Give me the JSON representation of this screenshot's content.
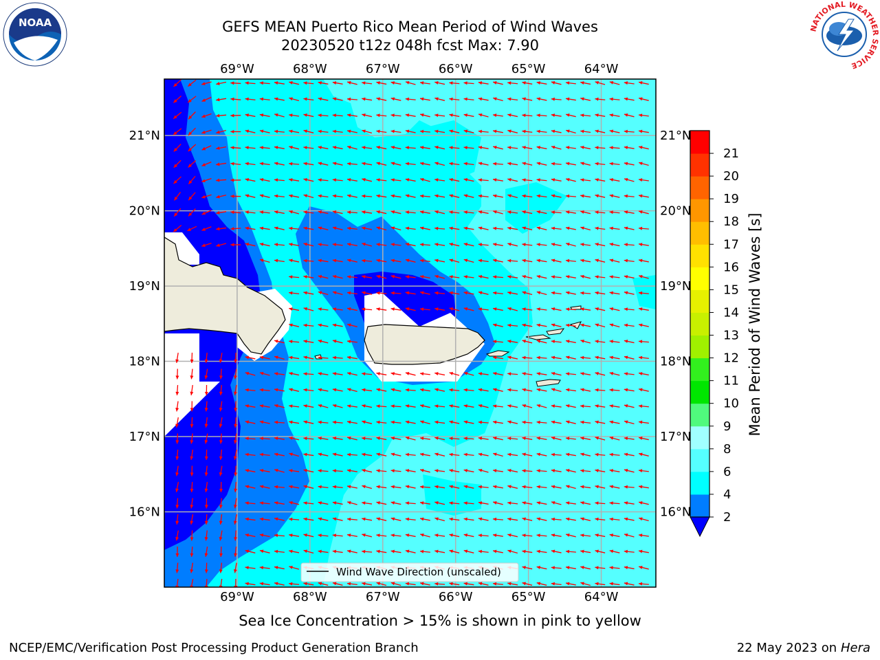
{
  "title": {
    "line1": "GEFS MEAN Puerto Rico Mean Period of Wind Waves",
    "line2": "20230520 t12z 048h fcst   Max: 7.90"
  },
  "map": {
    "lon_ticks": [
      "69°W",
      "68°W",
      "67°W",
      "66°W",
      "65°W",
      "64°W"
    ],
    "lat_ticks": [
      "21°N",
      "20°N",
      "19°N",
      "18°N",
      "17°N",
      "16°N"
    ],
    "lon_values": [
      -69,
      -68,
      -67,
      -66,
      -65,
      -64
    ],
    "lat_values": [
      21,
      20,
      19,
      18,
      17,
      16
    ],
    "extent": {
      "lon_min": -70.0,
      "lon_max": -63.25,
      "lat_min": 15.0,
      "lat_max": 21.75
    },
    "legend_label": "Wind Wave Direction (unscaled)",
    "arrow_color": "#ff0000",
    "land_color": "#eeecdc"
  },
  "colorbar": {
    "label": "Mean Period of Wind Waves [s]",
    "ticks": [
      "2",
      "4",
      "6",
      "8",
      "9",
      "10",
      "11",
      "12",
      "13",
      "14",
      "15",
      "16",
      "17",
      "18",
      "19",
      "20",
      "21"
    ],
    "bins": [
      {
        "from": 2,
        "to": 4,
        "color": "#007dff"
      },
      {
        "from": 4,
        "to": 6,
        "color": "#00ffff"
      },
      {
        "from": 6,
        "to": 8,
        "color": "#55ffff"
      },
      {
        "from": 8,
        "to": 9,
        "color": "#a0ffff"
      },
      {
        "from": 9,
        "to": 10,
        "color": "#50fa7d"
      },
      {
        "from": 10,
        "to": 11,
        "color": "#00e600"
      },
      {
        "from": 11,
        "to": 12,
        "color": "#32f01e"
      },
      {
        "from": 12,
        "to": 13,
        "color": "#a0f000"
      },
      {
        "from": 13,
        "to": 14,
        "color": "#c8f000"
      },
      {
        "from": 14,
        "to": 15,
        "color": "#e6f000"
      },
      {
        "from": 15,
        "to": 16,
        "color": "#ffff00"
      },
      {
        "from": 16,
        "to": 17,
        "color": "#ffe100"
      },
      {
        "from": 17,
        "to": 18,
        "color": "#ffbe00"
      },
      {
        "from": 18,
        "to": 19,
        "color": "#ff9600"
      },
      {
        "from": 19,
        "to": 20,
        "color": "#ff6400"
      },
      {
        "from": 20,
        "to": 21,
        "color": "#ff3200"
      },
      {
        "from": 21,
        "to": 22,
        "color": "#ff0000"
      }
    ],
    "under_color": "#0000ff"
  },
  "ice_note": "Sea Ice Concentration > 15% is shown in pink to yellow",
  "footer": {
    "left": "NCEP/EMC/Verification Post Processing Product Generation Branch",
    "date": "22 May 2023 on",
    "machine": "Hera"
  },
  "logos": {
    "noaa_text": "NOAA",
    "nws_ring": "NATIONAL WEATHER SERVICE"
  }
}
